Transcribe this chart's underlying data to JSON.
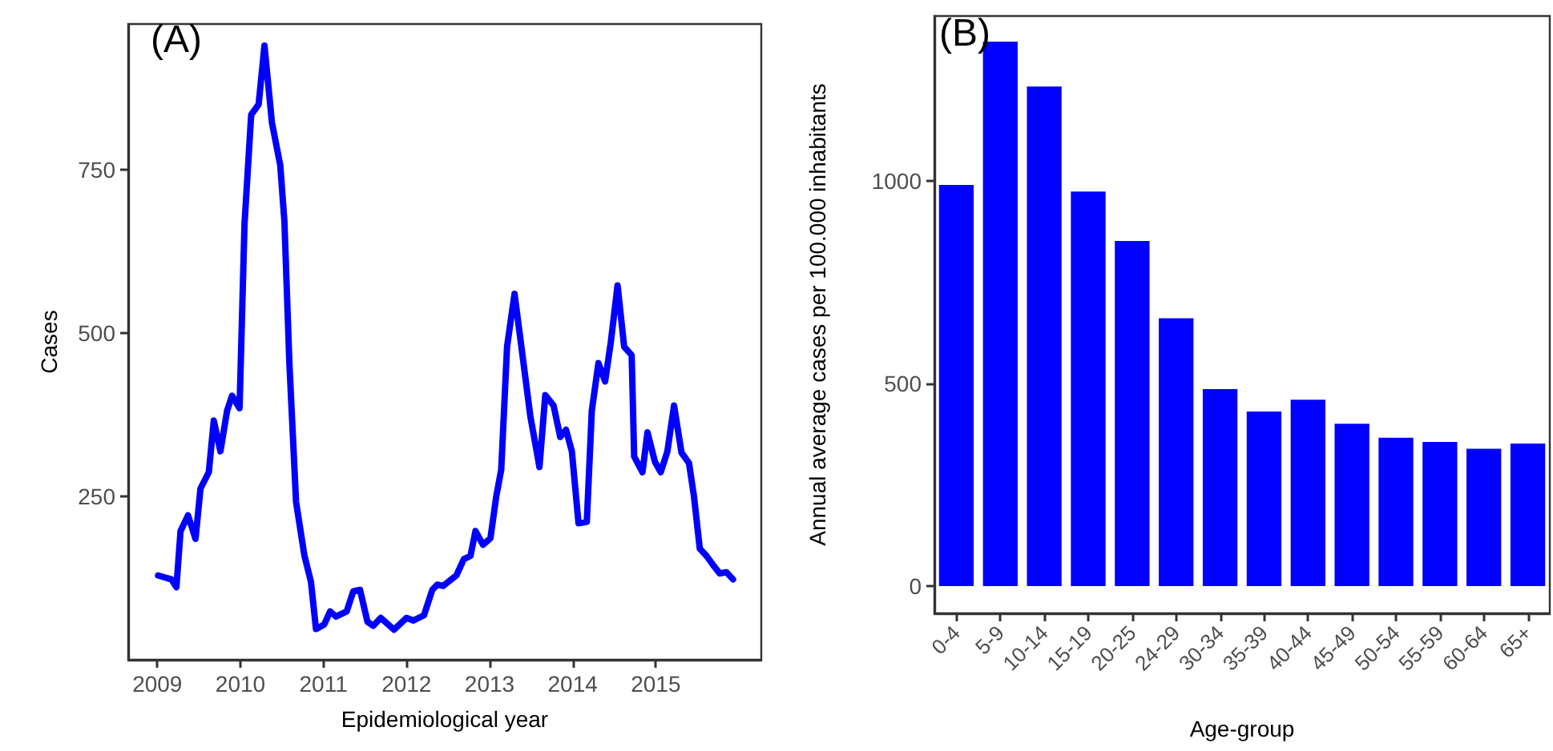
{
  "chart_data": [
    {
      "type": "line",
      "title": "(A)",
      "xlabel": "Epidemiological year",
      "ylabel": "Cases",
      "marker": "none",
      "grid": false,
      "series": [
        {
          "color": "#0000ff",
          "x": [
            2009.01,
            2009.17,
            2009.23,
            2009.28,
            2009.37,
            2009.46,
            2009.52,
            2009.62,
            2009.68,
            2009.76,
            2009.84,
            2009.9,
            2009.99,
            2010.05,
            2010.13,
            2010.22,
            2010.29,
            2010.38,
            2010.48,
            2010.53,
            2010.59,
            2010.67,
            2010.77,
            2010.85,
            2010.91,
            2011.01,
            2011.08,
            2011.15,
            2011.28,
            2011.36,
            2011.44,
            2011.53,
            2011.6,
            2011.69,
            2011.85,
            2012.0,
            2012.08,
            2012.21,
            2012.31,
            2012.37,
            2012.44,
            2012.6,
            2012.69,
            2012.77,
            2012.83,
            2012.92,
            2013.01,
            2013.08,
            2013.14,
            2013.21,
            2013.3,
            2013.4,
            2013.49,
            2013.6,
            2013.67,
            2013.77,
            2013.85,
            2013.92,
            2013.99,
            2014.07,
            2014.17,
            2014.23,
            2014.31,
            2014.39,
            2014.46,
            2014.54,
            2014.62,
            2014.71,
            2014.74,
            2014.84,
            2014.9,
            2014.99,
            2015.06,
            2015.14,
            2015.22,
            2015.31,
            2015.4,
            2015.46,
            2015.53,
            2015.61,
            2015.69,
            2015.77,
            2015.85,
            2015.93
          ],
          "values": [
            129,
            123,
            111,
            197,
            221,
            185,
            262,
            287,
            366,
            319,
            381,
            404,
            385,
            667,
            834,
            850,
            940,
            822,
            757,
            671,
            454,
            242,
            160,
            119,
            47,
            54,
            74,
            66,
            74,
            105,
            107,
            58,
            52,
            64,
            46,
            64,
            60,
            68,
            107,
            115,
            113,
            129,
            154,
            159,
            197,
            176,
            186,
            250,
            291,
            479,
            560,
            462,
            373,
            295,
            405,
            389,
            341,
            352,
            319,
            209,
            211,
            381,
            454,
            426,
            487,
            573,
            479,
            466,
            311,
            287,
            348,
            303,
            287,
            319,
            389,
            317,
            301,
            250,
            170,
            159,
            145,
            132,
            134,
            123
          ]
        }
      ],
      "xlim": [
        2008.65,
        2016.27
      ],
      "xticks": [
        2009,
        2010,
        2011,
        2012,
        2013,
        2014,
        2015
      ],
      "ylim": [
        0,
        973
      ],
      "yticks": [
        250,
        500,
        750
      ]
    },
    {
      "type": "bar",
      "title": "(B)",
      "xlabel": "Age-group",
      "ylabel": "Annual average cases per 100.000 inhabitants",
      "grid": false,
      "categories": [
        "0-4",
        "5-9",
        "10-14",
        "15-19",
        "20-25",
        "24-29",
        "30-34",
        "35-39",
        "40-44",
        "45-49",
        "50-54",
        "55-59",
        "60-64",
        "65+"
      ],
      "values": [
        990,
        1344,
        1233,
        974,
        852,
        661,
        486,
        431,
        460,
        401,
        366,
        356,
        339,
        352
      ],
      "color": "#0000ff",
      "ylim": [
        -67,
        1407
      ],
      "yticks": [
        0,
        500,
        1000
      ]
    }
  ]
}
